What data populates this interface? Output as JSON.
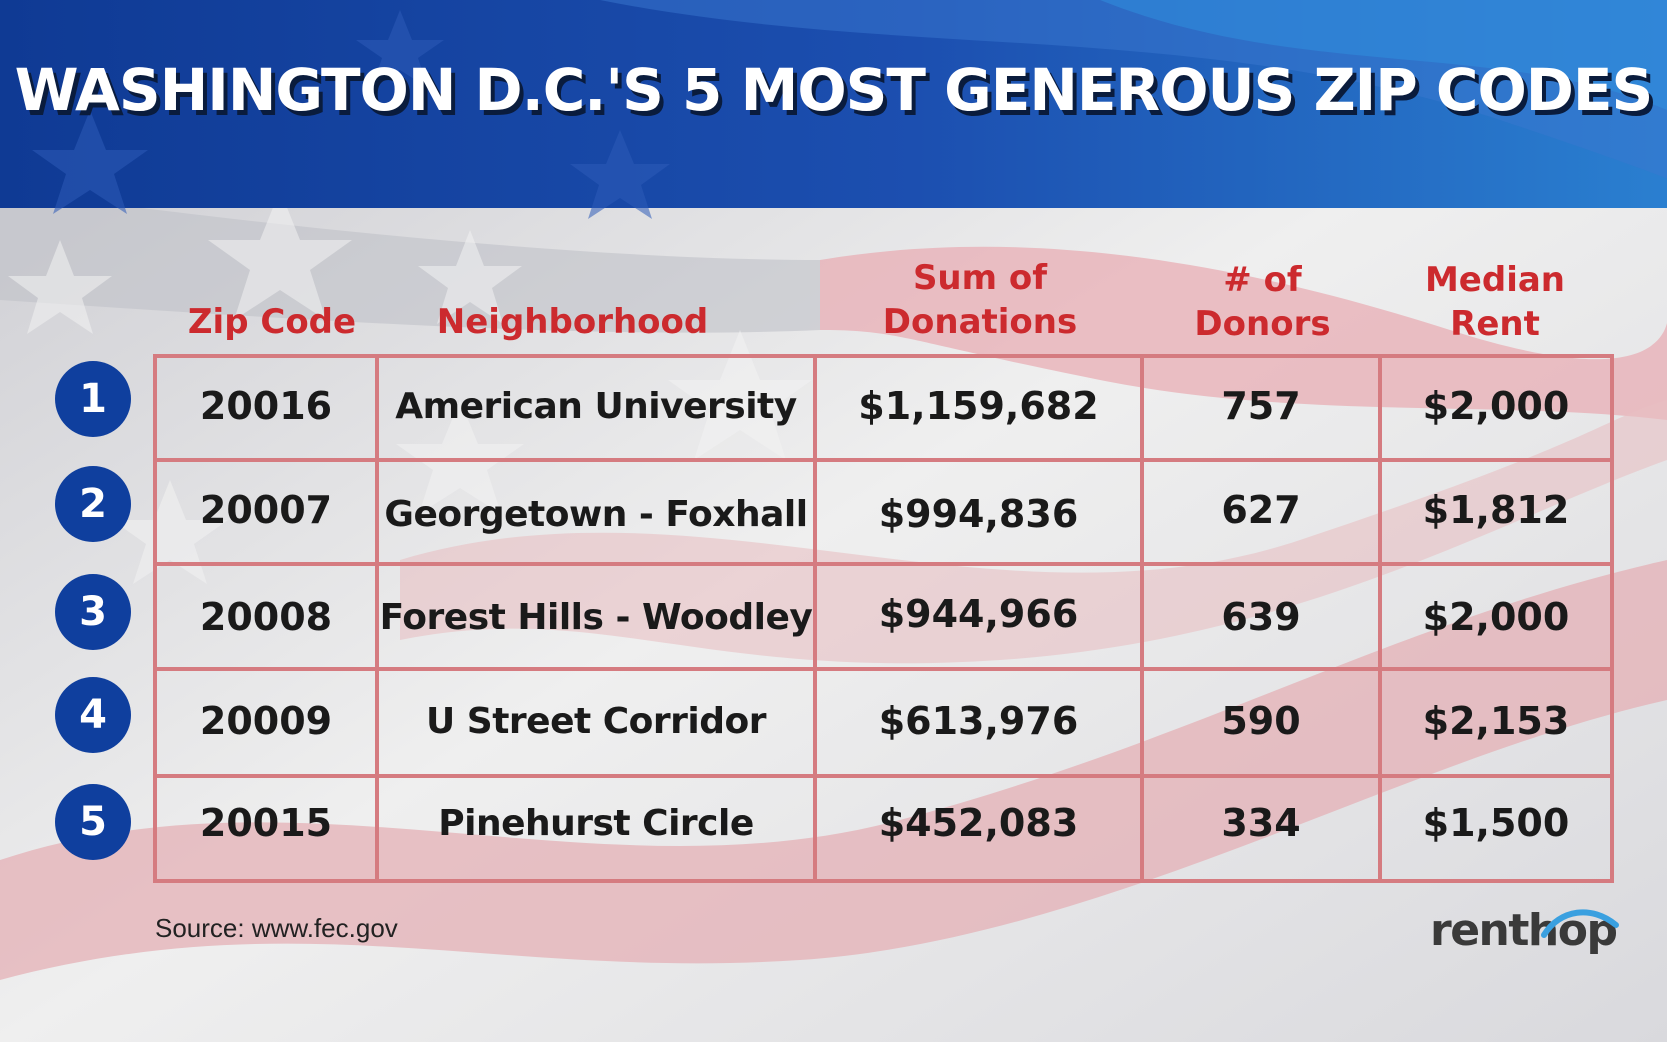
{
  "title": "WASHINGTON D.C.'S 5 MOST GENEROUS ZIP CODES",
  "colors": {
    "header_blue": "#1a4aa6",
    "accent_red": "#cc2a2e",
    "grid_line": "#d57b80",
    "rank_circle": "#0f3f9e"
  },
  "chart_data": {
    "type": "table",
    "title": "WASHINGTON D.C.'S 5 MOST GENEROUS ZIP CODES",
    "columns": [
      "Zip Code",
      "Neighborhood",
      "Sum of\nDonations",
      "# of\nDonors",
      "Median\nRent"
    ],
    "rows": [
      {
        "rank": "1",
        "zip": "20016",
        "neighborhood": "American University",
        "donations": "$1,159,682",
        "donors": "757",
        "rent": "$2,000"
      },
      {
        "rank": "2",
        "zip": "20007",
        "neighborhood": "Georgetown - Foxhall",
        "donations": "$994,836",
        "donors": "627",
        "rent": "$1,812"
      },
      {
        "rank": "3",
        "zip": "20008",
        "neighborhood": "Forest Hills - Woodley",
        "donations": "$944,966",
        "donors": "639",
        "rent": "$2,000"
      },
      {
        "rank": "4",
        "zip": "20009",
        "neighborhood": "U Street Corridor",
        "donations": "$613,976",
        "donors": "590",
        "rent": "$2,153"
      },
      {
        "rank": "5",
        "zip": "20015",
        "neighborhood": "Pinehurst Circle",
        "donations": "$452,083",
        "donors": "334",
        "rent": "$1,500"
      }
    ]
  },
  "source": "Source: www.fec.gov",
  "logo": "renthop"
}
